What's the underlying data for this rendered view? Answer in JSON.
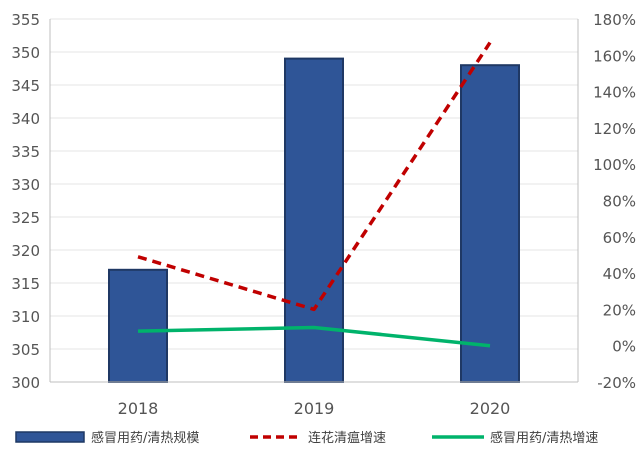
{
  "chart_data": {
    "type": "bar",
    "categories": [
      "2018",
      "2019",
      "2020"
    ],
    "y_left": {
      "range": [
        300,
        355
      ],
      "ticks": [
        300,
        305,
        310,
        315,
        320,
        325,
        330,
        335,
        340,
        345,
        350,
        355
      ]
    },
    "y_right": {
      "range": [
        -20,
        180
      ],
      "ticks": [
        "-20%",
        "0%",
        "20%",
        "40%",
        "60%",
        "80%",
        "100%",
        "120%",
        "140%",
        "160%",
        "180%"
      ],
      "unit": "percent"
    },
    "grid": true,
    "legend_position": "bottom",
    "series": [
      {
        "name": "感冒用药/清热规模",
        "kind": "bar",
        "axis": "left",
        "values": [
          317,
          349,
          348
        ],
        "color": "#2f5597"
      },
      {
        "name": "连花清瘟增速",
        "kind": "line",
        "style": "dashed",
        "axis": "right",
        "values": [
          49,
          20,
          167
        ],
        "color": "#c00000"
      },
      {
        "name": "感冒用药/清热增速",
        "kind": "line",
        "style": "solid",
        "axis": "right",
        "values": [
          8,
          10,
          0
        ],
        "color": "#00b36b"
      }
    ]
  }
}
